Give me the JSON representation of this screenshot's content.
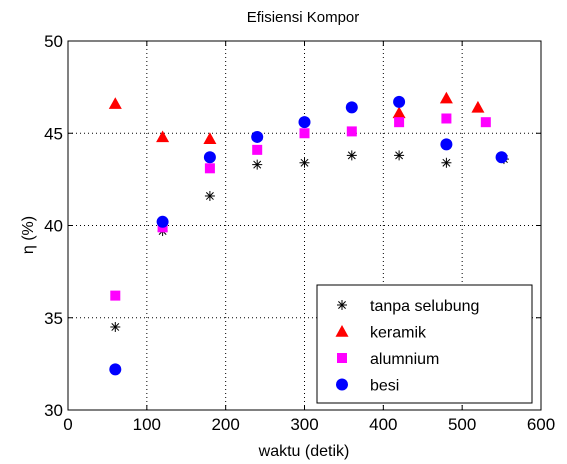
{
  "chart_data": {
    "type": "scatter",
    "title": "Efisiensi Kompor",
    "xlabel": "waktu (detik)",
    "ylabel": "η (%)",
    "xlim": [
      0,
      600
    ],
    "ylim": [
      30,
      50
    ],
    "xticks": [
      0,
      100,
      200,
      300,
      400,
      500,
      600
    ],
    "yticks": [
      30,
      35,
      40,
      45,
      50
    ],
    "grid": true,
    "grid_style": "dotted",
    "legend_position": "bottom-right",
    "series": [
      {
        "name": "tanpa selubung",
        "marker": "asterisk",
        "color": "#000000",
        "x": [
          60,
          120,
          180,
          240,
          300,
          360,
          420,
          480,
          553
        ],
        "y": [
          34.5,
          39.7,
          41.6,
          43.3,
          43.4,
          43.8,
          43.8,
          43.4,
          43.6
        ]
      },
      {
        "name": "keramik",
        "marker": "triangle",
        "color": "#ff0000",
        "x": [
          60,
          120,
          180,
          420,
          480,
          520
        ],
        "y": [
          46.6,
          44.8,
          44.7,
          46.1,
          46.9,
          46.4
        ]
      },
      {
        "name": "alumnium",
        "marker": "square",
        "color": "#ff00ff",
        "x": [
          60,
          120,
          180,
          240,
          300,
          360,
          420,
          480,
          530
        ],
        "y": [
          36.2,
          39.9,
          43.1,
          44.1,
          45.0,
          45.1,
          45.6,
          45.8,
          45.6
        ]
      },
      {
        "name": "besi",
        "marker": "circle",
        "color": "#0000ff",
        "x": [
          60,
          120,
          180,
          240,
          300,
          360,
          420,
          480,
          550
        ],
        "y": [
          32.2,
          40.2,
          43.7,
          44.8,
          45.6,
          46.4,
          46.7,
          44.4,
          43.7
        ]
      }
    ]
  }
}
